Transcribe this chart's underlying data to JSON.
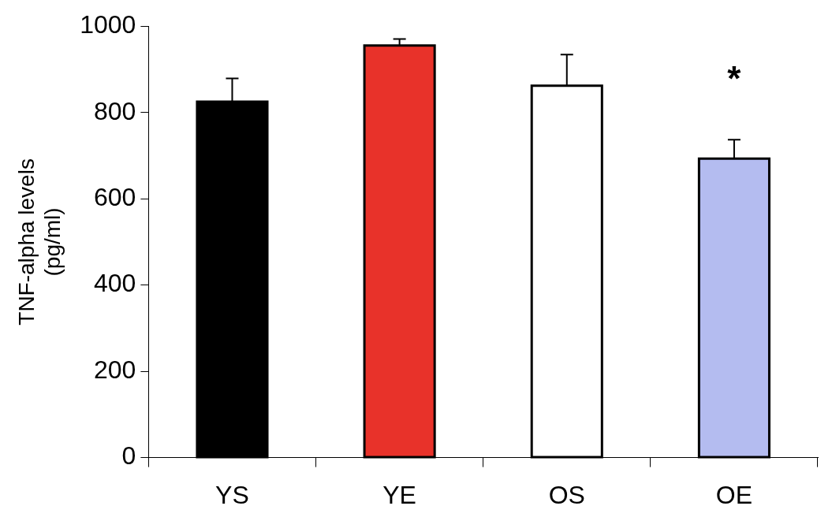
{
  "chart_data": {
    "type": "bar",
    "ylabel": "TNF-alpha levels\n(pg/ml)",
    "categories": [
      "YS",
      "YE",
      "OS",
      "OE"
    ],
    "values": [
      825,
      955,
      862,
      693
    ],
    "colors": [
      "#000000",
      "#e8322a",
      "#ffffff",
      "#b4bcf0"
    ],
    "errors": [
      [
        825,
        879
      ],
      [
        955,
        970
      ],
      [
        862,
        934
      ],
      [
        693,
        737
      ]
    ],
    "ylim": [
      0,
      1000
    ],
    "yticks": [
      0,
      200,
      400,
      600,
      800,
      1000
    ],
    "grid": false,
    "legend": false,
    "annotations": [
      "*"
    ]
  }
}
